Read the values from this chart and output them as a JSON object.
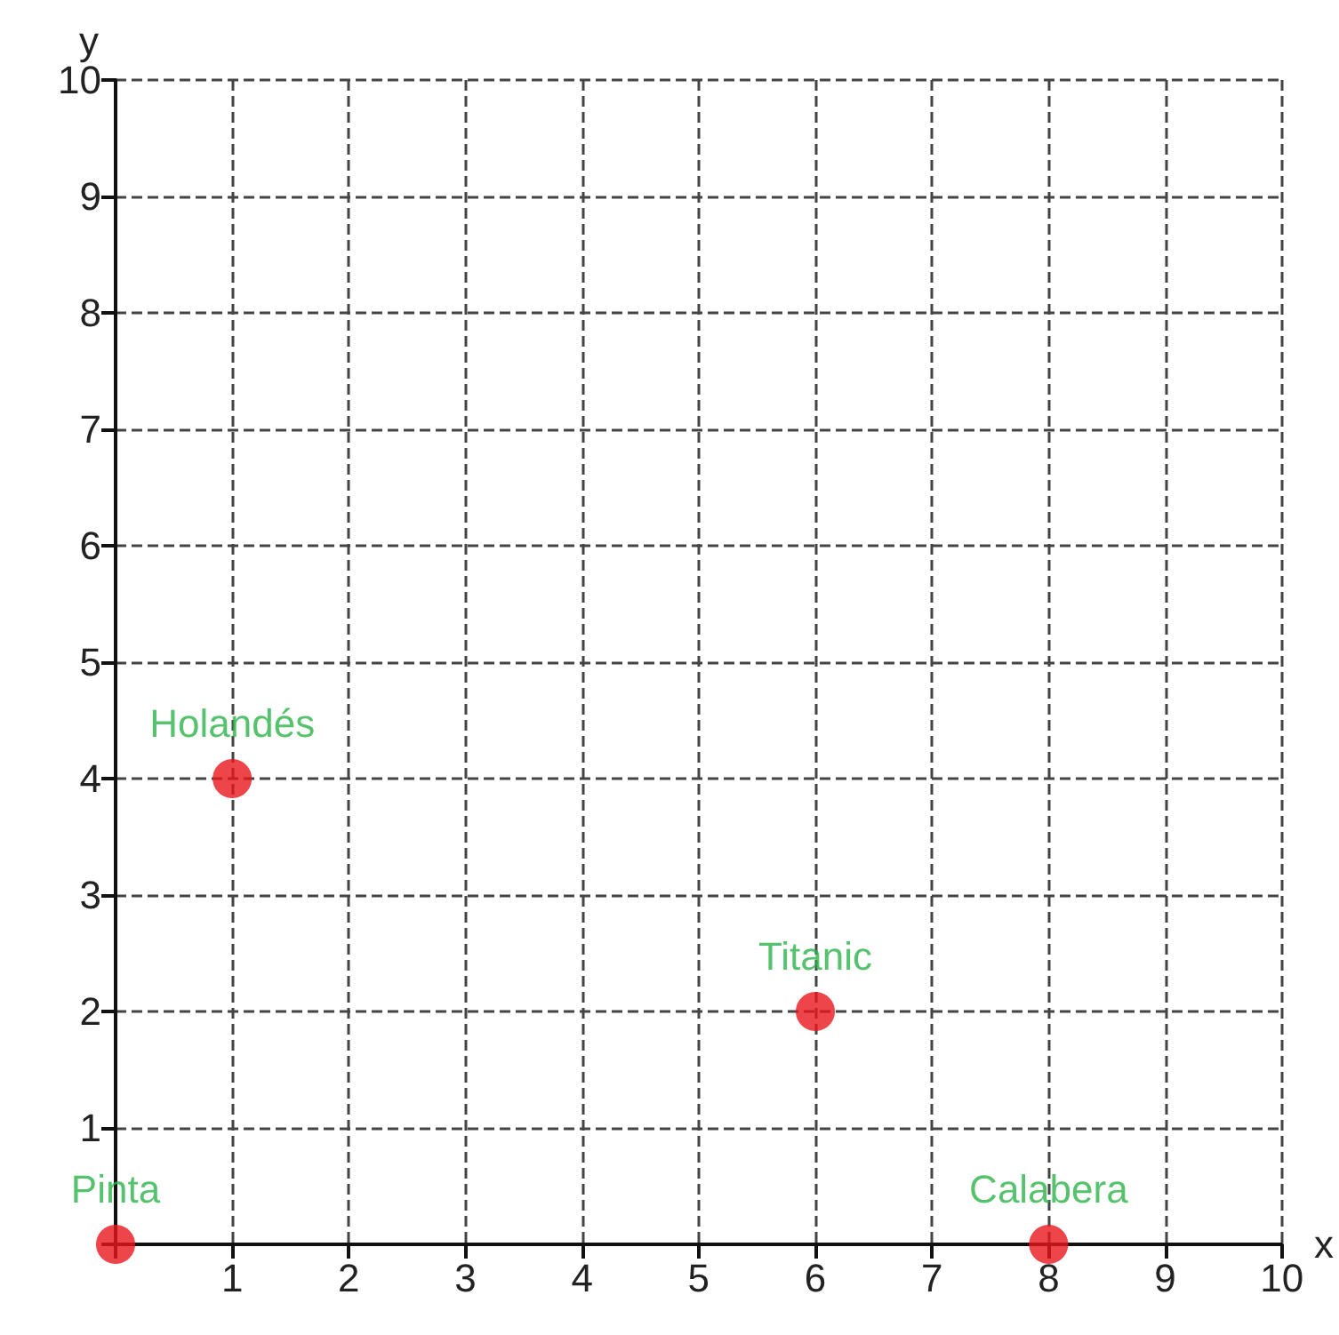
{
  "chart_data": {
    "type": "scatter",
    "xlabel": "x",
    "ylabel": "y",
    "x": [
      0,
      1,
      6,
      8
    ],
    "series": [
      {
        "color": "#e8161d",
        "values": [
          0,
          4,
          2,
          0
        ]
      }
    ],
    "xlim": [
      0,
      10
    ],
    "ylim": [
      0,
      10
    ],
    "xticks": [
      {
        "value": 0,
        "label": null
      },
      1,
      2,
      3,
      4,
      5,
      6,
      7,
      8,
      9,
      10
    ],
    "yticks": [
      {
        "value": 0,
        "label": null
      },
      1,
      2,
      3,
      4,
      5,
      6,
      7,
      8,
      9,
      10
    ],
    "grid": true,
    "marker": "circle",
    "line_style": "dashed",
    "annotations": [
      {
        "text": "Pinta",
        "x": 0,
        "y": 0
      },
      {
        "text": "Holandés",
        "x": 1,
        "y": 4
      },
      {
        "text": "Titanic",
        "x": 6,
        "y": 2
      },
      {
        "text": "Calabera",
        "x": 8,
        "y": 0
      }
    ]
  }
}
